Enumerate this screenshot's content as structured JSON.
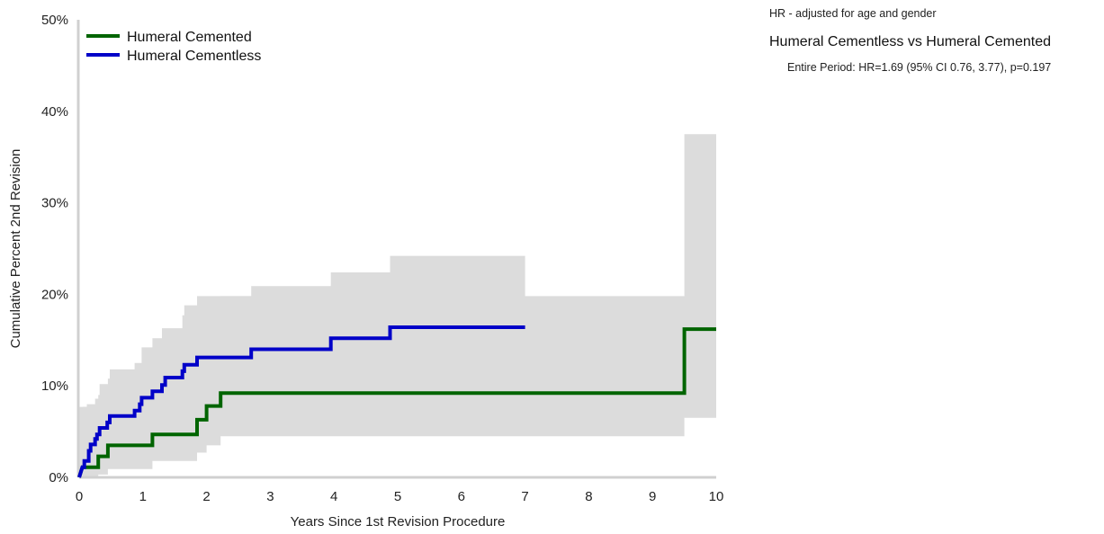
{
  "notes": {
    "hr_note": "HR - adjusted for age and gender",
    "comparison": "Humeral Cementless vs Humeral Cemented",
    "period": "Entire Period: HR=1.69 (95% CI 0.76, 3.77), p=0.197"
  },
  "chart_data": {
    "type": "line",
    "subtype": "step",
    "title": "",
    "xlabel": "Years Since 1st Revision Procedure",
    "ylabel": "Cumulative Percent 2nd Revision",
    "xlim": [
      0,
      10
    ],
    "ylim": [
      0,
      50
    ],
    "x_ticks": [
      "0",
      "1",
      "2",
      "3",
      "4",
      "5",
      "6",
      "7",
      "8",
      "9",
      "10"
    ],
    "y_ticks": [
      "0%",
      "10%",
      "20%",
      "30%",
      "40%",
      "50%"
    ],
    "grid": false,
    "legend_position": "top-left",
    "confidence_bands": true,
    "series": [
      {
        "name": "Humeral Cemented",
        "color": "#006400",
        "points": [
          [
            0,
            0
          ],
          [
            0.05,
            1.1
          ],
          [
            0.3,
            1.1
          ],
          [
            0.3,
            2.3
          ],
          [
            0.45,
            2.3
          ],
          [
            0.45,
            3.5
          ],
          [
            1.15,
            3.5
          ],
          [
            1.15,
            4.7
          ],
          [
            1.85,
            4.7
          ],
          [
            1.85,
            6.3
          ],
          [
            2.0,
            6.3
          ],
          [
            2.0,
            7.8
          ],
          [
            2.22,
            7.8
          ],
          [
            2.22,
            9.2
          ],
          [
            9.5,
            9.2
          ],
          [
            9.5,
            16.2
          ],
          [
            10,
            16.2
          ]
        ],
        "ci_band": [
          [
            0,
            0,
            2.9
          ],
          [
            0.05,
            0,
            7.7
          ],
          [
            0.3,
            0.3,
            9.0
          ],
          [
            0.45,
            0.9,
            10.8
          ],
          [
            1.15,
            1.8,
            12.3
          ],
          [
            1.85,
            2.7,
            14.5
          ],
          [
            2.0,
            3.5,
            17.5
          ],
          [
            2.22,
            4.5,
            19.8
          ],
          [
            9.5,
            6.5,
            37.5
          ],
          [
            10,
            6.5,
            37.5
          ]
        ]
      },
      {
        "name": "Humeral Cementless",
        "color": "#0000c8",
        "points": [
          [
            0,
            0
          ],
          [
            0.05,
            1.1
          ],
          [
            0.08,
            1.1
          ],
          [
            0.08,
            1.8
          ],
          [
            0.15,
            1.8
          ],
          [
            0.15,
            2.9
          ],
          [
            0.18,
            2.9
          ],
          [
            0.18,
            3.6
          ],
          [
            0.25,
            3.6
          ],
          [
            0.25,
            4.2
          ],
          [
            0.28,
            4.2
          ],
          [
            0.28,
            4.7
          ],
          [
            0.32,
            4.7
          ],
          [
            0.32,
            5.4
          ],
          [
            0.44,
            5.4
          ],
          [
            0.44,
            6.0
          ],
          [
            0.48,
            6.0
          ],
          [
            0.48,
            6.7
          ],
          [
            0.87,
            6.7
          ],
          [
            0.87,
            7.3
          ],
          [
            0.95,
            7.3
          ],
          [
            0.95,
            8.0
          ],
          [
            0.98,
            8.0
          ],
          [
            0.98,
            8.7
          ],
          [
            1.15,
            8.7
          ],
          [
            1.15,
            9.4
          ],
          [
            1.3,
            9.4
          ],
          [
            1.3,
            10.1
          ],
          [
            1.35,
            10.1
          ],
          [
            1.35,
            10.9
          ],
          [
            1.62,
            10.9
          ],
          [
            1.62,
            11.6
          ],
          [
            1.65,
            11.6
          ],
          [
            1.65,
            12.3
          ],
          [
            1.85,
            12.3
          ],
          [
            1.85,
            13.1
          ],
          [
            2.7,
            13.1
          ],
          [
            2.7,
            14.0
          ],
          [
            3.95,
            14.0
          ],
          [
            3.95,
            15.2
          ],
          [
            4.88,
            15.2
          ],
          [
            4.88,
            16.4
          ],
          [
            7.0,
            16.4
          ]
        ],
        "ci_band": [
          [
            0,
            0,
            7.7
          ],
          [
            0.12,
            0.5,
            8.0
          ],
          [
            0.25,
            0.9,
            8.6
          ],
          [
            0.32,
            1.2,
            10.2
          ],
          [
            0.48,
            1.8,
            11.8
          ],
          [
            0.87,
            2.5,
            12.5
          ],
          [
            0.98,
            3.0,
            14.2
          ],
          [
            1.15,
            3.5,
            15.2
          ],
          [
            1.3,
            4.0,
            16.3
          ],
          [
            1.62,
            4.5,
            17.7
          ],
          [
            1.65,
            4.9,
            18.8
          ],
          [
            1.85,
            5.5,
            19.8
          ],
          [
            2.7,
            6.0,
            20.9
          ],
          [
            3.95,
            7.0,
            22.4
          ],
          [
            4.88,
            8.0,
            24.2
          ],
          [
            7.0,
            8.0,
            24.2
          ]
        ]
      }
    ]
  }
}
